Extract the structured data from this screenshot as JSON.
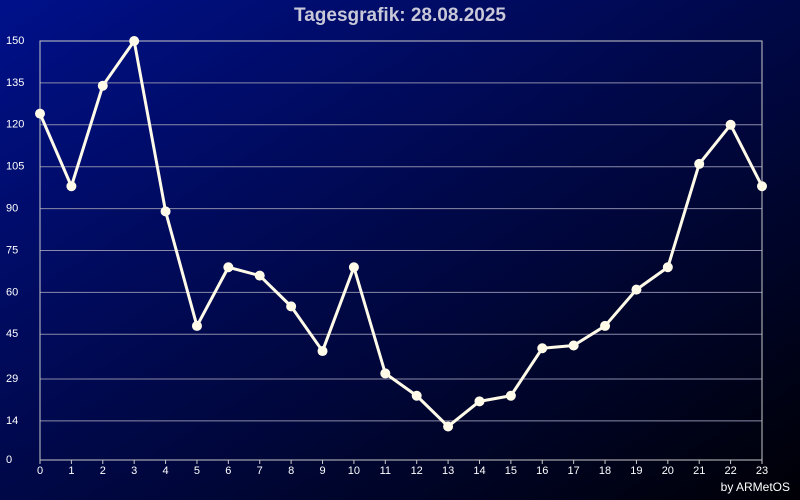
{
  "chart_data": {
    "type": "line",
    "title": "Tagesgrafik: 28.08.2025",
    "credit": "by ARMetOS",
    "x": [
      0,
      1,
      2,
      3,
      4,
      5,
      6,
      7,
      8,
      9,
      10,
      11,
      12,
      13,
      14,
      15,
      16,
      17,
      18,
      19,
      20,
      21,
      22,
      23
    ],
    "series": [
      {
        "color": "#fffbe8",
        "values": [
          124,
          98,
          134,
          150,
          89,
          48,
          69,
          66,
          55,
          39,
          69,
          31,
          23,
          12,
          21,
          23,
          40,
          41,
          48,
          61,
          69,
          106,
          120,
          98
        ]
      }
    ],
    "xlim": [
      0,
      23
    ],
    "xticks": [
      0,
      1,
      2,
      3,
      4,
      5,
      6,
      7,
      8,
      9,
      10,
      11,
      12,
      13,
      14,
      15,
      16,
      17,
      18,
      19,
      20,
      21,
      22,
      23
    ],
    "ylim": [
      0,
      150
    ],
    "yticks": [
      0,
      14,
      29,
      45,
      60,
      75,
      90,
      105,
      120,
      135,
      150
    ],
    "grid": true
  }
}
